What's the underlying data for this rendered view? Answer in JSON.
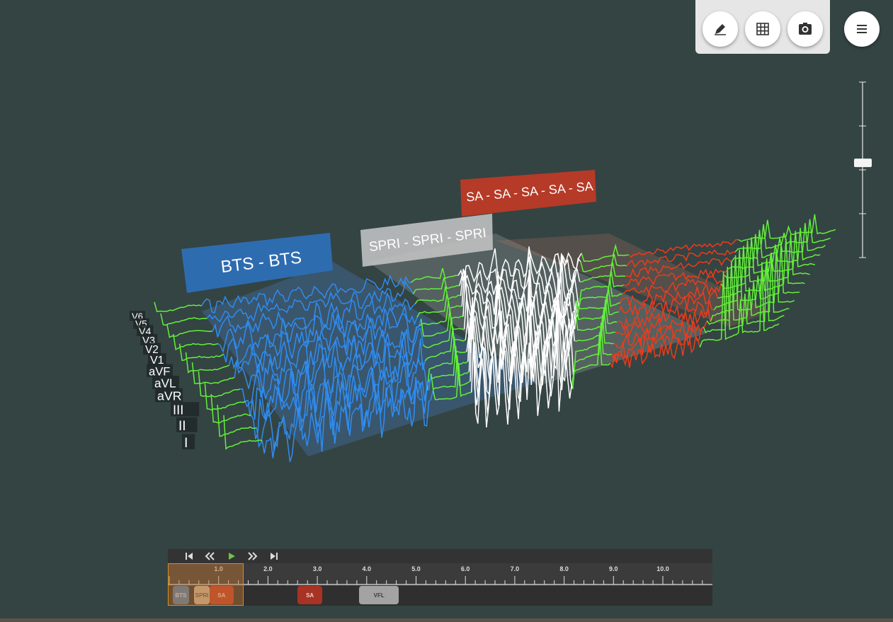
{
  "segments": [
    {
      "label": "BTS - BTS",
      "color": "#2e6cb0",
      "text_color": "#ffffff"
    },
    {
      "label": "SPRI - SPRI - SPRI",
      "color": "#c8c8c8",
      "text_color": "#ffffff"
    },
    {
      "label": "SA - SA - SA - SA - SA",
      "color": "#b53a27",
      "text_color": "#ffffff"
    }
  ],
  "leads": [
    "V6",
    "V5",
    "V4",
    "V3",
    "V2",
    "V1",
    "aVF",
    "aVL",
    "aVR",
    "III",
    "II",
    "I"
  ],
  "toolbar": {
    "buttons": [
      {
        "icon": "pen-icon"
      },
      {
        "icon": "grid-icon"
      },
      {
        "icon": "camera-icon"
      }
    ],
    "menu_icon": "hamburger-menu-icon"
  },
  "zoom": {
    "level": 0.46
  },
  "timeline": {
    "controls": [
      {
        "icon": "skip-start-icon"
      },
      {
        "icon": "rewind-icon"
      },
      {
        "icon": "play-icon"
      },
      {
        "icon": "fast-forward-icon"
      },
      {
        "icon": "skip-end-icon"
      }
    ],
    "ticks": [
      "1.0",
      "2.0",
      "3.0",
      "4.0",
      "5.0",
      "6.0",
      "7.0",
      "8.0",
      "9.0",
      "10.0"
    ],
    "events": [
      {
        "label": "BTS",
        "start": 0.07,
        "end": 0.4,
        "color": "#4a7aab",
        "text_color": "#c9d7e8"
      },
      {
        "label": "SPRI",
        "start": 0.5,
        "end": 0.82,
        "color": "#c9b29a",
        "text_color": "#555555"
      },
      {
        "label": "SA",
        "start": 0.82,
        "end": 1.3,
        "color": "#c23a25",
        "text_color": "#f0d0c8"
      },
      {
        "label": "SA",
        "start": 2.6,
        "end": 3.1,
        "color": "#a83224",
        "text_color": "#f0d0c8"
      },
      {
        "label": "VFL",
        "start": 3.85,
        "end": 4.65,
        "color": "#a3a3a3",
        "text_color": "#3d3d3d"
      }
    ],
    "window": {
      "start": 0.0,
      "end": 1.5
    }
  },
  "colors": {
    "background": "#344443",
    "normal": "#63f03a",
    "bts": "#2f8cf0",
    "spri": "#ffffff",
    "sa": "#f03a1a"
  }
}
